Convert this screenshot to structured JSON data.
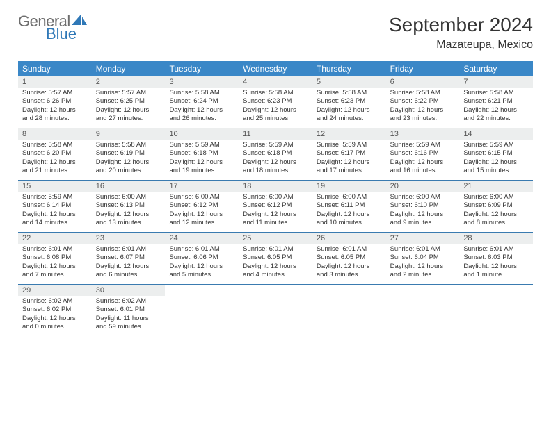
{
  "logo": {
    "text1": "General",
    "text2": "Blue"
  },
  "title": "September 2024",
  "location": "Mazateupa, Mexico",
  "colors": {
    "header_bg": "#3a87c7",
    "header_text": "#ffffff",
    "daynum_bg": "#eceeee",
    "week_border": "#3a7bb0",
    "logo_gray": "#6e6e6e",
    "logo_blue": "#2f78b7"
  },
  "day_names": [
    "Sunday",
    "Monday",
    "Tuesday",
    "Wednesday",
    "Thursday",
    "Friday",
    "Saturday"
  ],
  "weeks": [
    [
      {
        "n": "1",
        "sr": "Sunrise: 5:57 AM",
        "ss": "Sunset: 6:26 PM",
        "dl": "Daylight: 12 hours and 28 minutes."
      },
      {
        "n": "2",
        "sr": "Sunrise: 5:57 AM",
        "ss": "Sunset: 6:25 PM",
        "dl": "Daylight: 12 hours and 27 minutes."
      },
      {
        "n": "3",
        "sr": "Sunrise: 5:58 AM",
        "ss": "Sunset: 6:24 PM",
        "dl": "Daylight: 12 hours and 26 minutes."
      },
      {
        "n": "4",
        "sr": "Sunrise: 5:58 AM",
        "ss": "Sunset: 6:23 PM",
        "dl": "Daylight: 12 hours and 25 minutes."
      },
      {
        "n": "5",
        "sr": "Sunrise: 5:58 AM",
        "ss": "Sunset: 6:23 PM",
        "dl": "Daylight: 12 hours and 24 minutes."
      },
      {
        "n": "6",
        "sr": "Sunrise: 5:58 AM",
        "ss": "Sunset: 6:22 PM",
        "dl": "Daylight: 12 hours and 23 minutes."
      },
      {
        "n": "7",
        "sr": "Sunrise: 5:58 AM",
        "ss": "Sunset: 6:21 PM",
        "dl": "Daylight: 12 hours and 22 minutes."
      }
    ],
    [
      {
        "n": "8",
        "sr": "Sunrise: 5:58 AM",
        "ss": "Sunset: 6:20 PM",
        "dl": "Daylight: 12 hours and 21 minutes."
      },
      {
        "n": "9",
        "sr": "Sunrise: 5:58 AM",
        "ss": "Sunset: 6:19 PM",
        "dl": "Daylight: 12 hours and 20 minutes."
      },
      {
        "n": "10",
        "sr": "Sunrise: 5:59 AM",
        "ss": "Sunset: 6:18 PM",
        "dl": "Daylight: 12 hours and 19 minutes."
      },
      {
        "n": "11",
        "sr": "Sunrise: 5:59 AM",
        "ss": "Sunset: 6:18 PM",
        "dl": "Daylight: 12 hours and 18 minutes."
      },
      {
        "n": "12",
        "sr": "Sunrise: 5:59 AM",
        "ss": "Sunset: 6:17 PM",
        "dl": "Daylight: 12 hours and 17 minutes."
      },
      {
        "n": "13",
        "sr": "Sunrise: 5:59 AM",
        "ss": "Sunset: 6:16 PM",
        "dl": "Daylight: 12 hours and 16 minutes."
      },
      {
        "n": "14",
        "sr": "Sunrise: 5:59 AM",
        "ss": "Sunset: 6:15 PM",
        "dl": "Daylight: 12 hours and 15 minutes."
      }
    ],
    [
      {
        "n": "15",
        "sr": "Sunrise: 5:59 AM",
        "ss": "Sunset: 6:14 PM",
        "dl": "Daylight: 12 hours and 14 minutes."
      },
      {
        "n": "16",
        "sr": "Sunrise: 6:00 AM",
        "ss": "Sunset: 6:13 PM",
        "dl": "Daylight: 12 hours and 13 minutes."
      },
      {
        "n": "17",
        "sr": "Sunrise: 6:00 AM",
        "ss": "Sunset: 6:12 PM",
        "dl": "Daylight: 12 hours and 12 minutes."
      },
      {
        "n": "18",
        "sr": "Sunrise: 6:00 AM",
        "ss": "Sunset: 6:12 PM",
        "dl": "Daylight: 12 hours and 11 minutes."
      },
      {
        "n": "19",
        "sr": "Sunrise: 6:00 AM",
        "ss": "Sunset: 6:11 PM",
        "dl": "Daylight: 12 hours and 10 minutes."
      },
      {
        "n": "20",
        "sr": "Sunrise: 6:00 AM",
        "ss": "Sunset: 6:10 PM",
        "dl": "Daylight: 12 hours and 9 minutes."
      },
      {
        "n": "21",
        "sr": "Sunrise: 6:00 AM",
        "ss": "Sunset: 6:09 PM",
        "dl": "Daylight: 12 hours and 8 minutes."
      }
    ],
    [
      {
        "n": "22",
        "sr": "Sunrise: 6:01 AM",
        "ss": "Sunset: 6:08 PM",
        "dl": "Daylight: 12 hours and 7 minutes."
      },
      {
        "n": "23",
        "sr": "Sunrise: 6:01 AM",
        "ss": "Sunset: 6:07 PM",
        "dl": "Daylight: 12 hours and 6 minutes."
      },
      {
        "n": "24",
        "sr": "Sunrise: 6:01 AM",
        "ss": "Sunset: 6:06 PM",
        "dl": "Daylight: 12 hours and 5 minutes."
      },
      {
        "n": "25",
        "sr": "Sunrise: 6:01 AM",
        "ss": "Sunset: 6:05 PM",
        "dl": "Daylight: 12 hours and 4 minutes."
      },
      {
        "n": "26",
        "sr": "Sunrise: 6:01 AM",
        "ss": "Sunset: 6:05 PM",
        "dl": "Daylight: 12 hours and 3 minutes."
      },
      {
        "n": "27",
        "sr": "Sunrise: 6:01 AM",
        "ss": "Sunset: 6:04 PM",
        "dl": "Daylight: 12 hours and 2 minutes."
      },
      {
        "n": "28",
        "sr": "Sunrise: 6:01 AM",
        "ss": "Sunset: 6:03 PM",
        "dl": "Daylight: 12 hours and 1 minute."
      }
    ],
    [
      {
        "n": "29",
        "sr": "Sunrise: 6:02 AM",
        "ss": "Sunset: 6:02 PM",
        "dl": "Daylight: 12 hours and 0 minutes."
      },
      {
        "n": "30",
        "sr": "Sunrise: 6:02 AM",
        "ss": "Sunset: 6:01 PM",
        "dl": "Daylight: 11 hours and 59 minutes."
      },
      null,
      null,
      null,
      null,
      null
    ]
  ]
}
